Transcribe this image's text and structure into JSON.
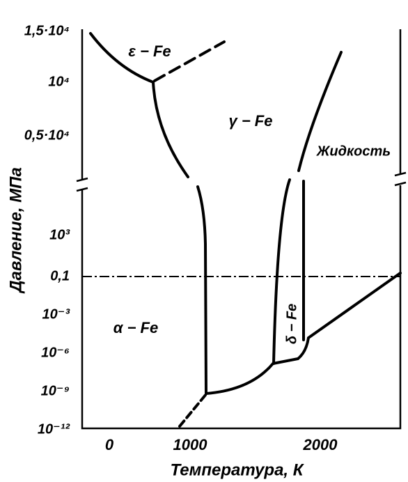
{
  "figure": {
    "x_axis": {
      "title": "Температура, К",
      "ticks": [
        "0",
        "1000",
        "2000"
      ]
    },
    "y_axis": {
      "title": "Давление, МПа",
      "ticks": [
        "1,5·10⁴",
        "10⁴",
        "0,5·10⁴",
        "10³",
        "0,1",
        "10⁻³",
        "10⁻⁶",
        "10⁻⁹",
        "10⁻¹²"
      ]
    },
    "regions": [
      "ε − Fe",
      "γ − Fe",
      "Жидкость",
      "α − Fe",
      "δ − Fe"
    ]
  }
}
